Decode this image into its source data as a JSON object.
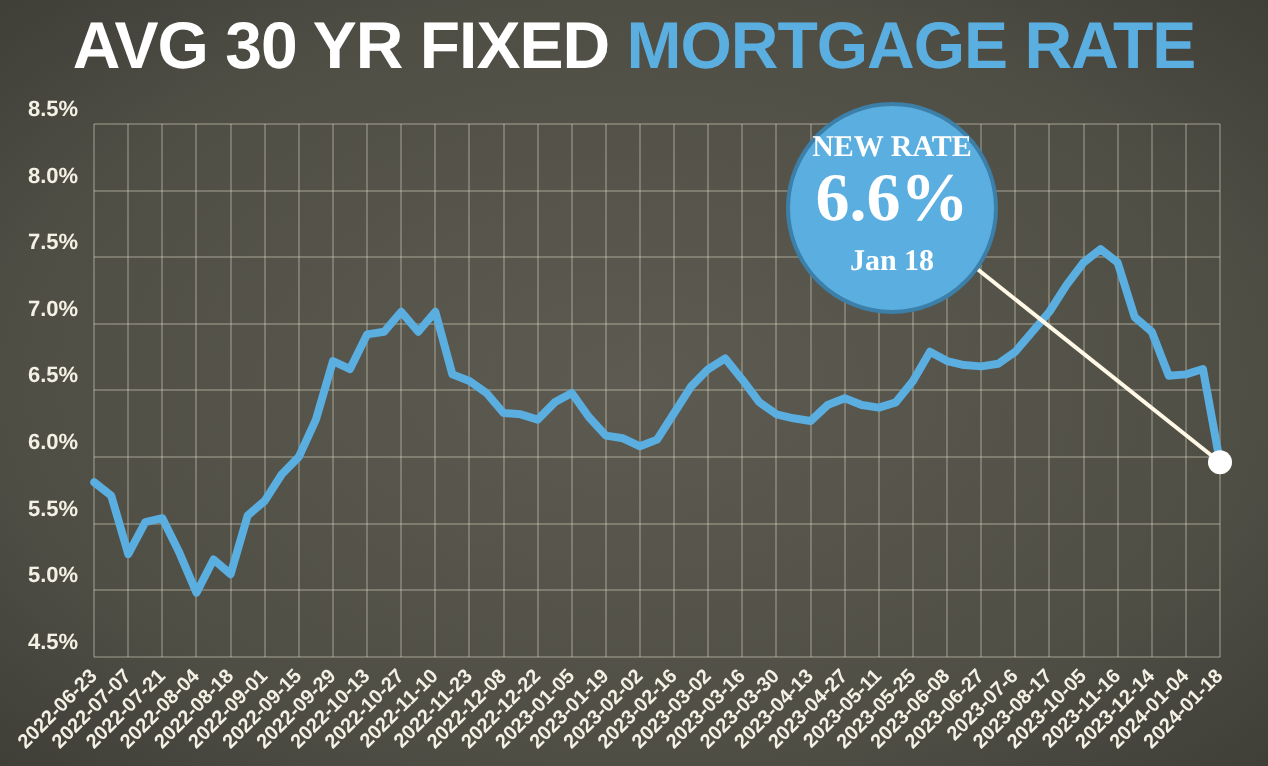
{
  "chart_data": {
    "type": "line",
    "title": "AVG 30 YR FIXED MORTGAGE RATE",
    "categories": [
      "2022-06-23",
      null,
      "2022-07-07",
      null,
      "2022-07-21",
      null,
      "2022-08-04",
      null,
      "2022-08-18",
      null,
      "2022-09-01",
      null,
      "2022-09-15",
      null,
      "2022-09-29",
      null,
      "2022-10-13",
      null,
      "2022-10-27",
      null,
      "2022-11-10",
      null,
      "2022-11-23",
      null,
      "2022-12-08",
      null,
      "2022-12-22",
      null,
      "2023-01-05",
      null,
      "2023-01-19",
      null,
      "2023-02-02",
      null,
      "2023-02-16",
      null,
      "2023-03-02",
      null,
      "2023-03-16",
      null,
      "2023-03-30",
      null,
      "2023-04-13",
      null,
      "2023-04-27",
      null,
      "2023-05-11",
      null,
      "2023-05-25",
      null,
      "2023-06-08",
      null,
      "2023-06-27",
      null,
      "2023-07-6",
      null,
      "2023-08-17",
      null,
      "2023-10-05",
      null,
      "2023-11-16",
      null,
      "2023-12-14",
      null,
      "2024-01-04",
      null,
      "2024-01-18"
    ],
    "series": [
      {
        "color": "#5aaee0",
        "values": [
          5.81,
          5.71,
          5.27,
          5.51,
          5.54,
          5.28,
          4.98,
          5.23,
          5.12,
          5.56,
          5.67,
          5.87,
          6.0,
          6.28,
          6.72,
          6.66,
          6.92,
          6.94,
          7.09,
          6.94,
          7.09,
          6.62,
          6.57,
          6.48,
          6.33,
          6.32,
          6.28,
          6.41,
          6.48,
          6.3,
          6.16,
          6.14,
          6.08,
          6.13,
          6.33,
          6.53,
          6.66,
          6.74,
          6.58,
          6.41,
          6.32,
          6.29,
          6.27,
          6.39,
          6.44,
          6.39,
          6.37,
          6.41,
          6.57,
          6.79,
          6.72,
          6.69,
          6.68,
          6.7,
          6.79,
          6.94,
          7.09,
          7.29,
          7.46,
          7.56,
          7.46,
          7.05,
          6.94,
          6.61,
          6.62,
          6.66,
          5.96
        ]
      }
    ],
    "ylim": [
      4.5,
      8.5
    ],
    "yticks": [
      {
        "value": 4.5,
        "label": "4.5%"
      },
      {
        "value": 5,
        "label": "5.0%"
      },
      {
        "value": 5.5,
        "label": "5.5%"
      },
      {
        "value": 6,
        "label": "6.0%"
      },
      {
        "value": 6.5,
        "label": "6.5%"
      },
      {
        "value": 7,
        "label": "7.0%"
      },
      {
        "value": 7.5,
        "label": "7.5%"
      },
      {
        "value": 8,
        "label": "8.0%"
      },
      {
        "value": 8.5,
        "label": "8.5%"
      }
    ],
    "grid": true,
    "legend": false,
    "marker": "none",
    "line_style": "solid",
    "annotations": [
      {
        "text": "NEW RATE\n6.6%\nJan 18",
        "x": "2024-01-18",
        "y": 5.96
      }
    ]
  }
}
